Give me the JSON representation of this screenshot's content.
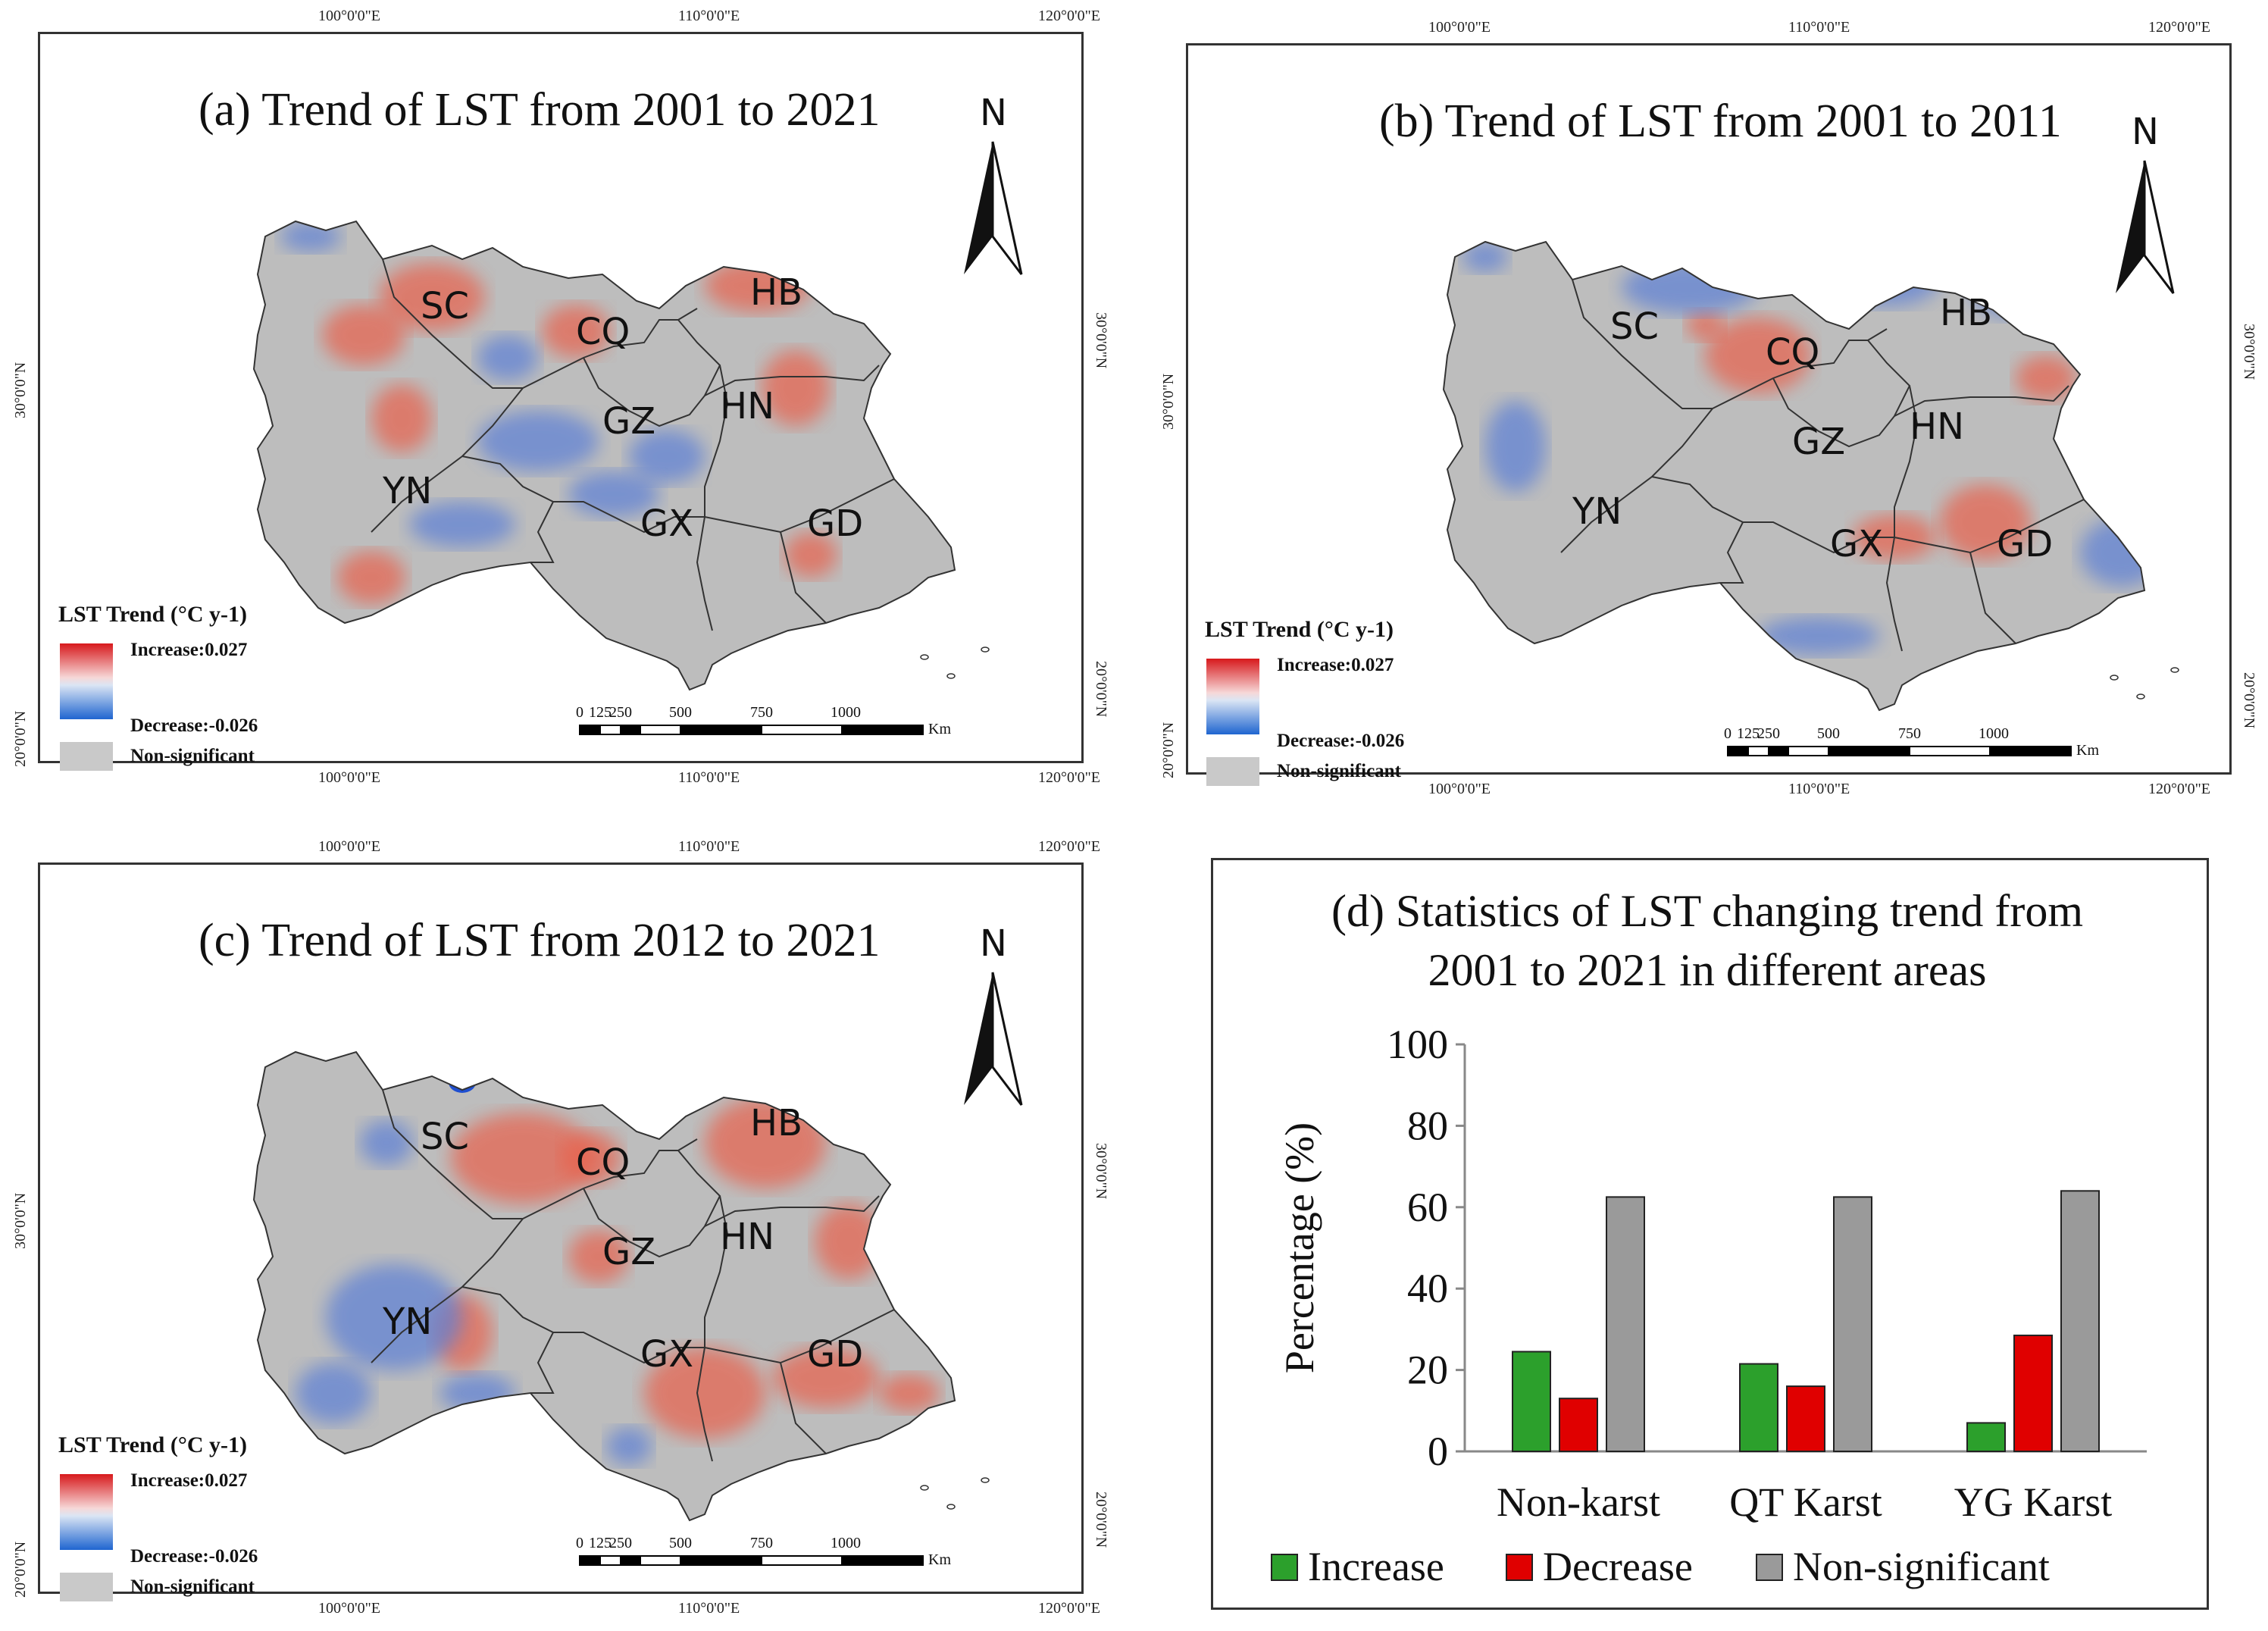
{
  "maps": [
    {
      "title": "(a) Trend of LST from 2001 to 2021",
      "top_coords": [
        "100°0'0\"E",
        "110°0'0\"E",
        "120°0'0\"E"
      ],
      "bottom_coords": [
        "100°0'0\"E",
        "110°0'0\"E",
        "120°0'0\"E"
      ],
      "side_coords": [
        "30°0'0\"N",
        "20°0'0\"N"
      ],
      "north": "N",
      "legend_title": "LST Trend (°C y-1)",
      "legend_increase": "Increase:0.027",
      "legend_decrease": "Decrease:-0.026",
      "legend_nonsig": "Non-significant",
      "scale_ticks": [
        "0",
        "125",
        "250",
        "500",
        "750",
        "1000"
      ],
      "scale_unit": "Km",
      "provinces": [
        "SC",
        "CQ",
        "HB",
        "GZ",
        "HN",
        "YN",
        "GX",
        "GD"
      ]
    },
    {
      "title": "(b) Trend of LST from 2001 to 2011",
      "top_coords": [
        "100°0'0\"E",
        "110°0'0\"E",
        "120°0'0\"E"
      ],
      "bottom_coords": [
        "100°0'0\"E",
        "110°0'0\"E",
        "120°0'0\"E"
      ],
      "side_coords": [
        "30°0'0\"N",
        "20°0'0\"N"
      ],
      "north": "N",
      "legend_title": "LST Trend (°C y-1)",
      "legend_increase": "Increase:0.027",
      "legend_decrease": "Decrease:-0.026",
      "legend_nonsig": "Non-significant",
      "scale_ticks": [
        "0",
        "125",
        "250",
        "500",
        "750",
        "1000"
      ],
      "scale_unit": "Km",
      "provinces": [
        "SC",
        "CQ",
        "HB",
        "GZ",
        "HN",
        "YN",
        "GX",
        "GD"
      ]
    },
    {
      "title": "(c) Trend of LST from 2012 to 2021",
      "top_coords": [
        "100°0'0\"E",
        "110°0'0\"E",
        "120°0'0\"E"
      ],
      "bottom_coords": [
        "100°0'0\"E",
        "110°0'0\"E",
        "120°0'0\"E"
      ],
      "side_coords": [
        "30°0'0\"N",
        "20°0'0\"N"
      ],
      "north": "N",
      "legend_title": "LST Trend (°C y-1)",
      "legend_increase": "Increase:0.027",
      "legend_decrease": "Decrease:-0.026",
      "legend_nonsig": "Non-significant",
      "scale_ticks": [
        "0",
        "125",
        "250",
        "500",
        "750",
        "1000"
      ],
      "scale_unit": "Km",
      "provinces": [
        "SC",
        "CQ",
        "HB",
        "GZ",
        "HN",
        "YN",
        "GX",
        "GD"
      ]
    }
  ],
  "colors": {
    "increase": "#2ca02c",
    "decrease": "#e00000",
    "nonsig": "#9a9a9a",
    "map_gray": "#bdbdbd",
    "map_red": "#e8604c",
    "map_blue": "#5b7fd6"
  },
  "chart_data": {
    "type": "bar",
    "title_line1": "(d) Statistics of LST changing trend from",
    "title_line2": "2001 to 2021 in different areas",
    "categories": [
      "Non-karst",
      "QT Karst",
      "YG Karst"
    ],
    "series": [
      {
        "name": "Increase",
        "values": [
          24.5,
          21.5,
          7
        ]
      },
      {
        "name": "Decrease",
        "values": [
          13,
          16,
          28.5
        ]
      },
      {
        "name": "Non-significant",
        "values": [
          62.5,
          62.5,
          64
        ]
      }
    ],
    "ylabel": "Percentage (%)",
    "ylim": [
      0,
      100
    ],
    "yticks": [
      "0",
      "20",
      "40",
      "60",
      "80",
      "100"
    ]
  }
}
